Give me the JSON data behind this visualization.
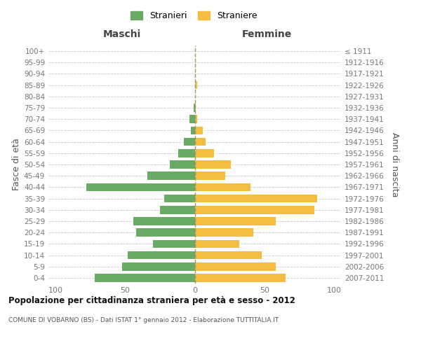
{
  "age_groups": [
    "100+",
    "95-99",
    "90-94",
    "85-89",
    "80-84",
    "75-79",
    "70-74",
    "65-69",
    "60-64",
    "55-59",
    "50-54",
    "45-49",
    "40-44",
    "35-39",
    "30-34",
    "25-29",
    "20-24",
    "15-19",
    "10-14",
    "5-9",
    "0-4"
  ],
  "birth_years": [
    "≤ 1911",
    "1912-1916",
    "1917-1921",
    "1922-1926",
    "1927-1931",
    "1932-1936",
    "1937-1941",
    "1942-1946",
    "1947-1951",
    "1952-1956",
    "1957-1961",
    "1962-1966",
    "1967-1971",
    "1972-1976",
    "1977-1981",
    "1982-1986",
    "1987-1991",
    "1992-1996",
    "1997-2001",
    "2002-2006",
    "2007-2011"
  ],
  "maschi": [
    0,
    0,
    0,
    0,
    0,
    1,
    4,
    3,
    8,
    12,
    18,
    34,
    78,
    22,
    25,
    44,
    42,
    30,
    48,
    52,
    72
  ],
  "femmine": [
    0,
    0,
    0,
    2,
    0,
    1,
    2,
    6,
    8,
    14,
    26,
    22,
    40,
    88,
    86,
    58,
    42,
    32,
    48,
    58,
    65
  ],
  "maschi_color": "#6aaa64",
  "femmine_color": "#f5bc42",
  "center_line_color": "#999966",
  "grid_color": "#cccccc",
  "title": "Popolazione per cittadinanza straniera per età e sesso - 2012",
  "subtitle": "COMUNE DI VOBARNO (BS) - Dati ISTAT 1° gennaio 2012 - Elaborazione TUTTITALIA.IT",
  "xlabel_left": "Maschi",
  "xlabel_right": "Femmine",
  "ylabel_left": "Fasce di età",
  "ylabel_right": "Anni di nascita",
  "legend_maschi": "Stranieri",
  "legend_femmine": "Straniere",
  "xlim": 105
}
